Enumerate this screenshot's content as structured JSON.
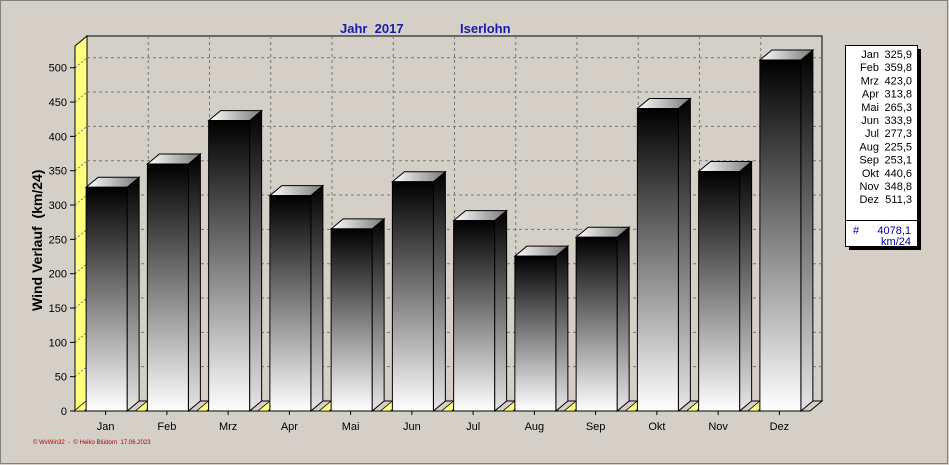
{
  "header": {
    "year_label": "Jahr  2017",
    "location_label": "Iserlohn"
  },
  "credit": "© WvWin32  -  © Heiko Blüdorn  17.06.2023",
  "chart_data": {
    "type": "bar",
    "title": "Jahr  2017    Iserlohn",
    "xlabel": "",
    "ylabel": "Wind Verlauf  (km/24)",
    "ylim": [
      0,
      520
    ],
    "yticks": [
      0,
      50,
      100,
      150,
      200,
      250,
      300,
      350,
      400,
      450,
      500
    ],
    "grid": true,
    "categories": [
      "Jan",
      "Feb",
      "Mrz",
      "Apr",
      "Mai",
      "Jun",
      "Jul",
      "Aug",
      "Sep",
      "Okt",
      "Nov",
      "Dez"
    ],
    "values": [
      325.9,
      359.8,
      423.0,
      313.8,
      265.3,
      333.9,
      277.3,
      225.5,
      253.1,
      440.6,
      348.8,
      511.3
    ],
    "legend": {
      "placement": "right",
      "entries": [
        {
          "label": "Jan",
          "value": "325,9"
        },
        {
          "label": "Feb",
          "value": "359,8"
        },
        {
          "label": "Mrz",
          "value": "423,0"
        },
        {
          "label": "Apr",
          "value": "313,8"
        },
        {
          "label": "Mai",
          "value": "265,3"
        },
        {
          "label": "Jun",
          "value": "333,9"
        },
        {
          "label": "Jul",
          "value": "277,3"
        },
        {
          "label": "Aug",
          "value": "225,5"
        },
        {
          "label": "Sep",
          "value": "253,1"
        },
        {
          "label": "Okt",
          "value": "440,6"
        },
        {
          "label": "Nov",
          "value": "348,8"
        },
        {
          "label": "Dez",
          "value": "511,3"
        }
      ],
      "total_symbol": "#",
      "total_value": "4078,1",
      "total_unit": "km/24"
    },
    "colors": {
      "bar_top": "#000000",
      "bar_bottom": "#ffffff",
      "floor": "#ffff80",
      "plot_background": "#d4d0c8",
      "title": "#1a1ab0"
    }
  }
}
